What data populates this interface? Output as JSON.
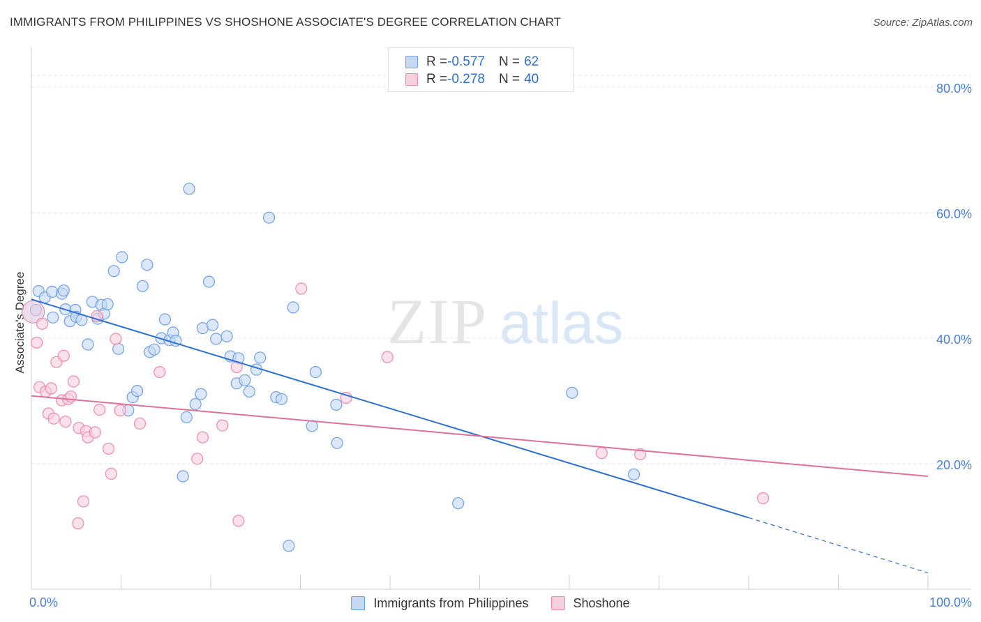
{
  "header": {
    "title": "IMMIGRANTS FROM PHILIPPINES VS SHOSHONE ASSOCIATE'S DEGREE CORRELATION CHART",
    "source": "Source: ZipAtlas.com"
  },
  "watermark": {
    "zip": "ZIP",
    "atlas": "atlas"
  },
  "legend": {
    "rows": [
      {
        "r_label": "R = ",
        "r_value": "-0.577",
        "n_label": "N = ",
        "n_value": "62"
      },
      {
        "r_label": "R = ",
        "r_value": "-0.278",
        "n_label": "N = ",
        "n_value": "40"
      }
    ]
  },
  "chart_data": {
    "type": "scatter",
    "title": "IMMIGRANTS FROM PHILIPPINES VS SHOSHONE ASSOCIATE'S DEGREE CORRELATION CHART",
    "xlabel": "",
    "ylabel": "Associate's Degree",
    "xlim": [
      0,
      100
    ],
    "ylim": [
      0,
      85
    ],
    "x_tick_labels": [
      "0.0%",
      "100.0%"
    ],
    "y_ticks": [
      20,
      40,
      60,
      80
    ],
    "y_tick_labels": [
      "20.0%",
      "40.0%",
      "60.0%",
      "80.0%"
    ],
    "grid": true,
    "legend_position": "top-center",
    "series": [
      {
        "name": "Immigrants from Philippines",
        "color": "#6fa0e6",
        "fill": "#c5d9f5",
        "line_color": "#2b6fd0",
        "R": -0.577,
        "N": 62,
        "trend": {
          "x0": 0,
          "y0": 46.2,
          "x1": 80,
          "y1": 11.4,
          "dashed_to_x": 100,
          "dashed_to_y": 2.6
        },
        "points": [
          [
            0.5,
            44.5
          ],
          [
            0.8,
            47.5
          ],
          [
            1.5,
            46.5
          ],
          [
            2.3,
            47.4
          ],
          [
            2.4,
            43.3
          ],
          [
            3.4,
            47.1
          ],
          [
            3.6,
            47.6
          ],
          [
            3.8,
            44.6
          ],
          [
            4.3,
            42.7
          ],
          [
            4.9,
            44.5
          ],
          [
            5.0,
            43.4
          ],
          [
            5.6,
            42.9
          ],
          [
            6.3,
            39.0
          ],
          [
            6.8,
            45.8
          ],
          [
            7.4,
            43.1
          ],
          [
            7.8,
            45.3
          ],
          [
            8.1,
            43.9
          ],
          [
            8.5,
            45.4
          ],
          [
            9.2,
            50.7
          ],
          [
            9.7,
            38.3
          ],
          [
            10.1,
            52.9
          ],
          [
            10.8,
            28.5
          ],
          [
            11.3,
            30.6
          ],
          [
            11.8,
            31.6
          ],
          [
            12.4,
            48.3
          ],
          [
            12.9,
            51.7
          ],
          [
            13.2,
            37.8
          ],
          [
            13.7,
            38.2
          ],
          [
            14.5,
            40.0
          ],
          [
            14.9,
            43.0
          ],
          [
            15.4,
            39.7
          ],
          [
            15.8,
            40.9
          ],
          [
            16.1,
            39.6
          ],
          [
            16.9,
            18.0
          ],
          [
            17.3,
            27.4
          ],
          [
            17.6,
            63.8
          ],
          [
            18.3,
            29.5
          ],
          [
            18.9,
            31.1
          ],
          [
            19.1,
            41.6
          ],
          [
            19.8,
            49.0
          ],
          [
            20.2,
            42.1
          ],
          [
            20.6,
            39.9
          ],
          [
            21.8,
            40.3
          ],
          [
            22.2,
            37.1
          ],
          [
            22.9,
            32.8
          ],
          [
            23.1,
            36.8
          ],
          [
            23.8,
            33.3
          ],
          [
            24.3,
            31.5
          ],
          [
            25.1,
            35.0
          ],
          [
            25.5,
            36.9
          ],
          [
            26.5,
            59.2
          ],
          [
            27.3,
            30.6
          ],
          [
            27.9,
            30.3
          ],
          [
            28.7,
            6.9
          ],
          [
            29.2,
            44.9
          ],
          [
            31.3,
            26.0
          ],
          [
            31.7,
            34.6
          ],
          [
            34.0,
            29.4
          ],
          [
            34.1,
            23.3
          ],
          [
            47.6,
            13.7
          ],
          [
            60.3,
            31.3
          ],
          [
            67.2,
            18.3
          ]
        ],
        "large_point": [
          0.2,
          44.2
        ]
      },
      {
        "name": "Shoshone",
        "color": "#ee8aaa",
        "fill": "#f8cfdc",
        "line_color": "#e0709a",
        "R": -0.278,
        "N": 40,
        "trend": {
          "x0": 0,
          "y0": 30.8,
          "x1": 100,
          "y1": 18.0
        },
        "points": [
          [
            0.6,
            39.3
          ],
          [
            0.9,
            32.2
          ],
          [
            1.2,
            42.3
          ],
          [
            1.6,
            31.5
          ],
          [
            1.9,
            28.0
          ],
          [
            2.2,
            32.0
          ],
          [
            2.5,
            27.2
          ],
          [
            2.8,
            36.2
          ],
          [
            3.4,
            30.1
          ],
          [
            3.6,
            37.2
          ],
          [
            3.8,
            26.7
          ],
          [
            4.1,
            30.3
          ],
          [
            4.4,
            30.7
          ],
          [
            4.7,
            33.1
          ],
          [
            5.2,
            10.5
          ],
          [
            5.3,
            25.7
          ],
          [
            5.8,
            14.0
          ],
          [
            6.1,
            25.2
          ],
          [
            6.3,
            24.2
          ],
          [
            7.1,
            25.0
          ],
          [
            7.3,
            43.5
          ],
          [
            7.6,
            28.6
          ],
          [
            8.6,
            22.4
          ],
          [
            8.9,
            18.4
          ],
          [
            9.4,
            39.9
          ],
          [
            9.9,
            28.5
          ],
          [
            12.1,
            26.4
          ],
          [
            14.3,
            34.6
          ],
          [
            18.5,
            20.8
          ],
          [
            19.1,
            24.2
          ],
          [
            21.3,
            26.1
          ],
          [
            22.9,
            35.4
          ],
          [
            23.1,
            10.9
          ],
          [
            30.1,
            47.9
          ],
          [
            35.1,
            30.5
          ],
          [
            39.7,
            37.0
          ],
          [
            63.6,
            21.7
          ],
          [
            67.9,
            21.5
          ],
          [
            81.6,
            14.5
          ]
        ],
        "large_point": [
          0.2,
          44.2
        ]
      }
    ]
  }
}
